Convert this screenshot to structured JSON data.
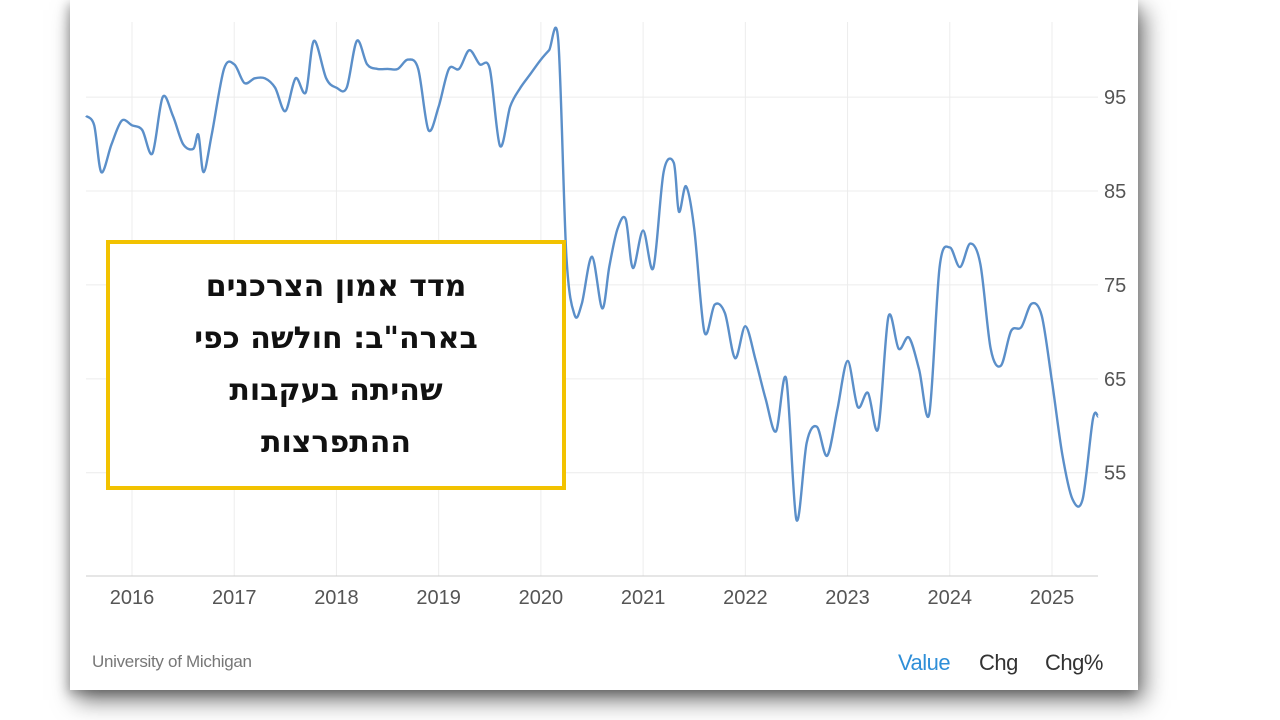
{
  "chart_data": {
    "type": "line",
    "title": "",
    "xlabel": "",
    "ylabel": "",
    "x_ticks": [
      "2016",
      "2017",
      "2018",
      "2019",
      "2020",
      "2021",
      "2022",
      "2023",
      "2024",
      "2025"
    ],
    "y_ticks": [
      55,
      65,
      75,
      85,
      95
    ],
    "ylim": [
      44,
      103
    ],
    "xlim": [
      2015.55,
      2025.45
    ],
    "grid": true,
    "y_axis_side": "right",
    "series": [
      {
        "color": "#5b8fc9",
        "x": [
          2015.55,
          2015.63,
          2015.7,
          2015.8,
          2015.9,
          2016.0,
          2016.1,
          2016.2,
          2016.3,
          2016.4,
          2016.5,
          2016.6,
          2016.65,
          2016.7,
          2016.78,
          2016.9,
          2017.0,
          2017.1,
          2017.2,
          2017.3,
          2017.4,
          2017.5,
          2017.6,
          2017.7,
          2017.78,
          2017.9,
          2018.0,
          2018.1,
          2018.2,
          2018.3,
          2018.4,
          2018.5,
          2018.6,
          2018.7,
          2018.8,
          2018.9,
          2019.0,
          2019.1,
          2019.2,
          2019.3,
          2019.4,
          2019.5,
          2019.6,
          2019.7,
          2019.8,
          2019.9,
          2020.0,
          2020.08,
          2020.17,
          2020.25,
          2020.33,
          2020.4,
          2020.5,
          2020.6,
          2020.67,
          2020.75,
          2020.83,
          2020.9,
          2021.0,
          2021.1,
          2021.2,
          2021.3,
          2021.35,
          2021.42,
          2021.5,
          2021.6,
          2021.7,
          2021.8,
          2021.9,
          2022.0,
          2022.1,
          2022.2,
          2022.3,
          2022.4,
          2022.5,
          2022.6,
          2022.7,
          2022.8,
          2022.9,
          2023.0,
          2023.1,
          2023.2,
          2023.3,
          2023.4,
          2023.5,
          2023.6,
          2023.7,
          2023.8,
          2023.9,
          2024.0,
          2024.1,
          2024.2,
          2024.3,
          2024.4,
          2024.5,
          2024.6,
          2024.7,
          2024.8,
          2024.9,
          2025.0,
          2025.1,
          2025.2,
          2025.3,
          2025.4,
          2025.45
        ],
        "y": [
          93,
          92,
          87,
          90,
          92.5,
          92,
          91.5,
          89,
          95,
          93,
          90,
          89.5,
          91,
          87,
          91,
          98,
          98.5,
          96.5,
          97,
          97,
          96,
          93.5,
          97,
          95.5,
          101,
          97,
          96,
          96,
          101,
          98.5,
          98,
          98,
          98,
          99,
          98,
          91.5,
          94,
          98,
          98,
          100,
          98.5,
          98,
          89.8,
          94,
          96,
          97.5,
          99,
          100,
          101,
          78,
          71.8,
          73,
          78,
          72.5,
          77,
          81,
          82,
          76.8,
          80.8,
          76.8,
          87,
          88,
          82.8,
          85.5,
          81,
          70,
          72.9,
          72,
          67.2,
          70.6,
          67,
          62.8,
          59.4,
          65,
          50,
          58.2,
          59.9,
          56.8,
          61.7,
          66.9,
          62,
          63.5,
          59.7,
          71.6,
          68.2,
          69.4,
          66,
          61.3,
          76.9,
          79,
          76.9,
          79.4,
          77.2,
          68.2,
          66.4,
          70.1,
          70.5,
          73,
          71.7,
          64.7,
          57,
          52.2,
          52.2,
          60.7,
          61
        ]
      }
    ]
  },
  "callout": {
    "text": "מדד אמון הצרכנים בארה\"ב: חולשה כפי שהיתה בעקבות ההתפרצות",
    "border_color": "#f2c200"
  },
  "footer": {
    "source": "University of Michigan",
    "tabs": [
      {
        "label": "Value",
        "active": true
      },
      {
        "label": "Chg",
        "active": false
      },
      {
        "label": "Chg%",
        "active": false
      }
    ]
  }
}
